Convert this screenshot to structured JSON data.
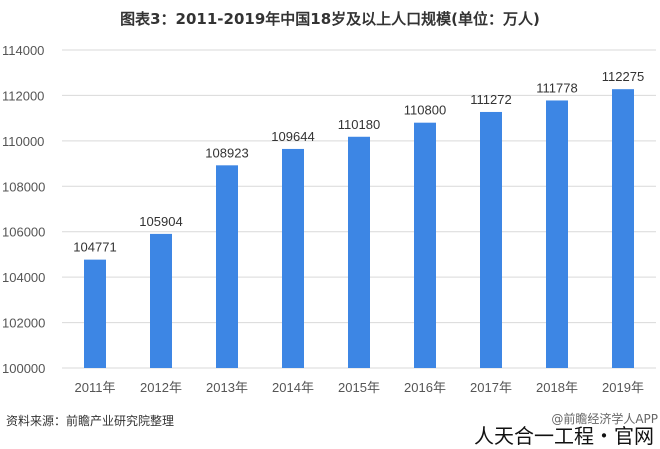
{
  "title": "图表3：2011-2019年中国18岁及以上人口规模(单位：万人)",
  "source": "资料来源：前瞻产业研究院整理",
  "credit": "@前瞻经济学人APP",
  "stamp": "人天合一工程・官网",
  "chart_data": {
    "type": "bar",
    "title": "图表3：2011-2019年中国18岁及以上人口规模(单位：万人)",
    "categories": [
      "2011年",
      "2012年",
      "2013年",
      "2014年",
      "2015年",
      "2016年",
      "2017年",
      "2018年",
      "2019年"
    ],
    "values": [
      104771,
      105904,
      108923,
      109644,
      110180,
      110800,
      111272,
      111778,
      112275
    ],
    "ylim": [
      100000,
      114000
    ],
    "yticks": [
      100000,
      102000,
      104000,
      106000,
      108000,
      110000,
      112000,
      114000
    ],
    "grid": true,
    "bar_color": "#3d86e4",
    "xlabel": "",
    "ylabel": ""
  }
}
